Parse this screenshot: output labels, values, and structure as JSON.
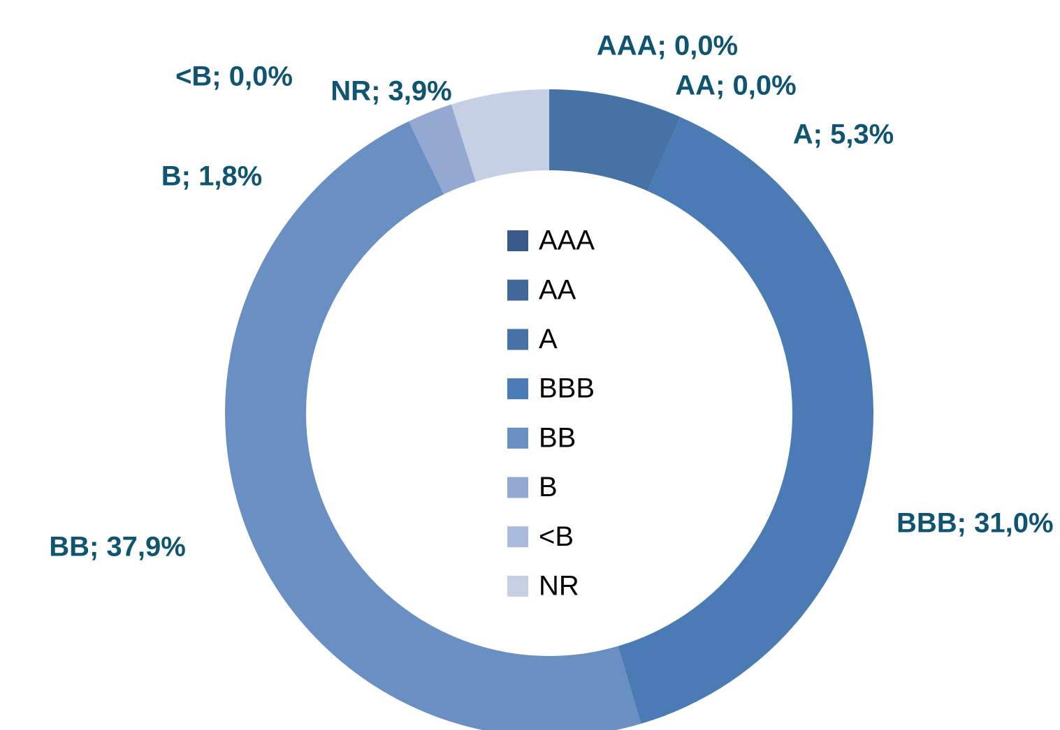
{
  "chart_data": {
    "type": "donut",
    "categories": [
      "AAA",
      "AA",
      "A",
      "BBB",
      "BB",
      "B",
      "<B",
      "NR"
    ],
    "values": [
      0,
      0,
      5.3,
      31,
      37.9,
      1.8,
      0,
      3.9
    ],
    "value_labels": [
      "AAA; 0,0%",
      "AA; 0,0%",
      "A; 5,3%",
      "BBB; 31,0%",
      "BB; 37,9%",
      "B; 1,8%",
      "<B; 0,0%",
      "NR; 3,9%"
    ],
    "colors": [
      "#3a5a8c",
      "#41679b",
      "#4672a6",
      "#4a7bb5",
      "#6a8fc3",
      "#93a9d2",
      "#a9bbdc",
      "#c5d0e4"
    ],
    "legend": "center"
  }
}
